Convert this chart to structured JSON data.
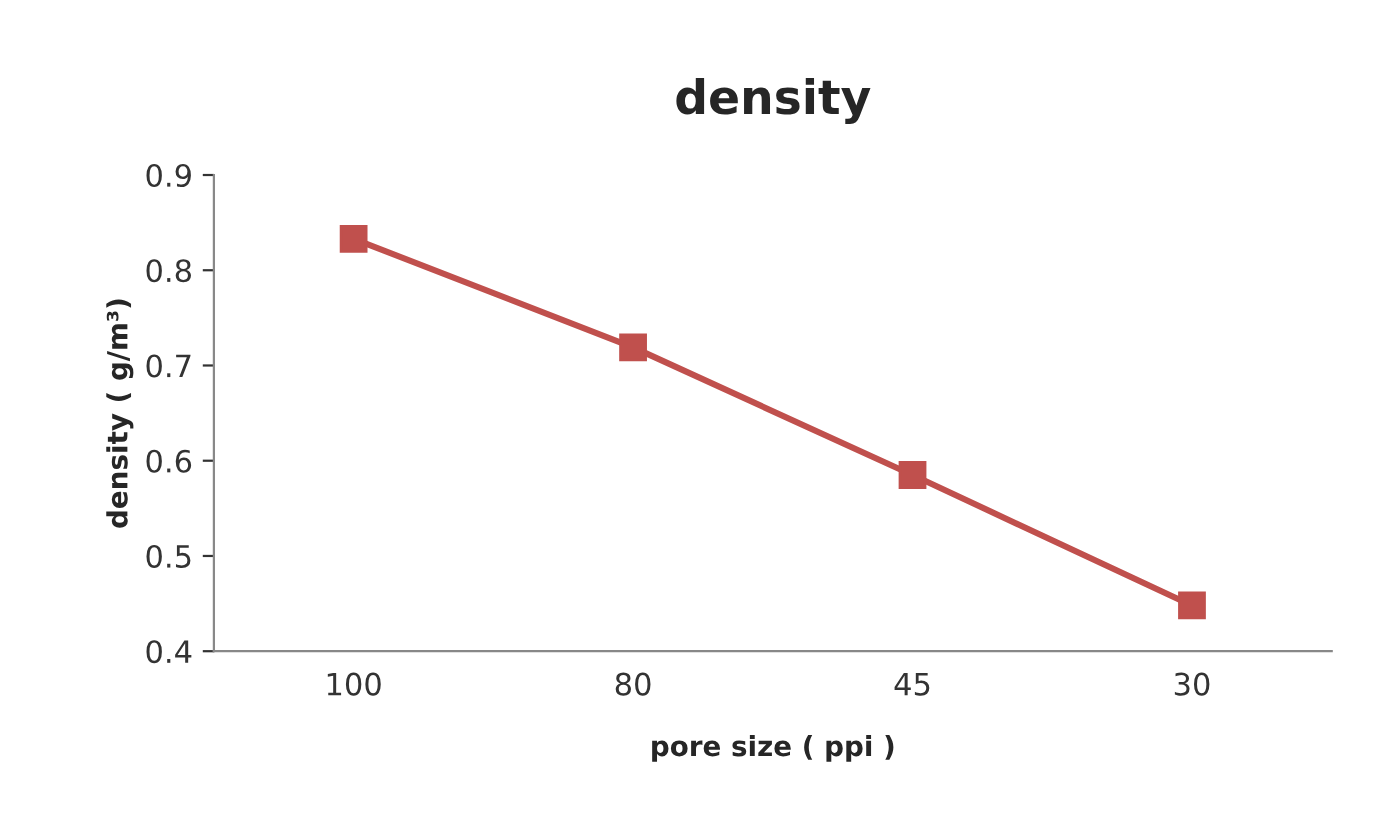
{
  "chart_data": {
    "type": "line",
    "title": "density",
    "xlabel": "pore size ( ppi )",
    "ylabel": "density ( g/m³)",
    "categories": [
      "100",
      "80",
      "45",
      "30"
    ],
    "series": [
      {
        "color": "#c0504d",
        "values": [
          0.833,
          0.719,
          0.585,
          0.448
        ]
      }
    ],
    "ylim": [
      0.4,
      0.9
    ],
    "yticks": [
      0.4,
      0.5,
      0.6,
      0.7,
      0.8,
      0.9
    ],
    "marker": "square",
    "line_style": "solid",
    "grid": false,
    "legend": false
  }
}
